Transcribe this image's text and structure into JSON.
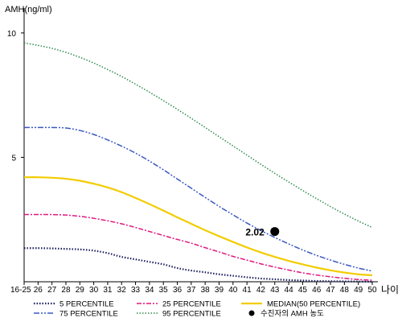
{
  "chart_data": {
    "type": "line",
    "ylabel": "AMH(ng/ml)",
    "xlabel": "나이",
    "ylim": [
      0,
      11
    ],
    "yticks": [
      5,
      10
    ],
    "x": [
      "16-25",
      "26",
      "27",
      "28",
      "29",
      "30",
      "31",
      "32",
      "33",
      "34",
      "35",
      "36",
      "37",
      "38",
      "39",
      "40",
      "41",
      "42",
      "43",
      "44",
      "45",
      "46",
      "47",
      "48",
      "49",
      "50"
    ],
    "series": [
      {
        "name": "5 PERCENTILE",
        "color": "#1a1f5c",
        "dash": "1.5,2",
        "width": 2.2,
        "values": [
          1.35,
          1.35,
          1.34,
          1.32,
          1.3,
          1.25,
          1.15,
          1.0,
          0.9,
          0.8,
          0.7,
          0.55,
          0.45,
          0.38,
          0.3,
          0.24,
          0.18,
          0.13,
          0.1,
          0.07,
          0.05,
          0.03,
          0.02,
          0.015,
          0.01,
          0.0
        ]
      },
      {
        "name": "25 PERCENTILE",
        "color": "#e0187f",
        "dash": "6,2,2,2",
        "width": 1.5,
        "values": [
          2.7,
          2.7,
          2.7,
          2.68,
          2.63,
          2.55,
          2.45,
          2.33,
          2.18,
          2.02,
          1.86,
          1.7,
          1.55,
          1.37,
          1.2,
          1.02,
          0.87,
          0.72,
          0.59,
          0.47,
          0.36,
          0.27,
          0.2,
          0.14,
          0.09,
          0.06
        ]
      },
      {
        "name": "MEDIAN(50 PERCENTILE)",
        "color": "#f2cc00",
        "dash": "",
        "width": 2.2,
        "values": [
          4.2,
          4.2,
          4.18,
          4.14,
          4.06,
          3.94,
          3.79,
          3.6,
          3.37,
          3.12,
          2.86,
          2.59,
          2.33,
          2.07,
          1.83,
          1.6,
          1.38,
          1.18,
          1.0,
          0.84,
          0.7,
          0.57,
          0.46,
          0.37,
          0.3,
          0.26
        ]
      },
      {
        "name": "75 PERCENTILE",
        "color": "#3a58c0",
        "dash": "7,2,2,2,2,2",
        "width": 1.5,
        "values": [
          6.2,
          6.2,
          6.2,
          6.18,
          6.08,
          5.92,
          5.7,
          5.45,
          5.17,
          4.85,
          4.5,
          4.13,
          3.76,
          3.39,
          3.03,
          2.69,
          2.36,
          2.06,
          1.78,
          1.52,
          1.28,
          1.06,
          0.87,
          0.7,
          0.55,
          0.43
        ]
      },
      {
        "name": "95 PERCENTILE",
        "color": "#2e8b4e",
        "dash": "1.5,2",
        "width": 1.5,
        "values": [
          9.6,
          9.5,
          9.38,
          9.22,
          9.02,
          8.79,
          8.53,
          8.25,
          7.94,
          7.62,
          7.28,
          6.93,
          6.57,
          6.2,
          5.83,
          5.46,
          5.09,
          4.72,
          4.36,
          4.01,
          3.67,
          3.34,
          3.02,
          2.72,
          2.44,
          2.18
        ]
      }
    ],
    "patient": {
      "name": "수진자의 AMH 농도",
      "x": "43",
      "value": 2.02,
      "label": "2.02",
      "color": "#000000"
    },
    "legend": {
      "placement": "bottom",
      "items": [
        {
          "name": "5 PERCENTILE",
          "series": 0
        },
        {
          "name": "25 PERCENTILE",
          "series": 1
        },
        {
          "name": "MEDIAN(50 PERCENTILE)",
          "series": 2
        },
        {
          "name": "75 PERCENTILE",
          "series": 3
        },
        {
          "name": "95 PERCENTILE",
          "series": 4
        },
        {
          "name": "수진자의 AMH 농도",
          "marker": "dot"
        }
      ]
    },
    "grid": false
  }
}
